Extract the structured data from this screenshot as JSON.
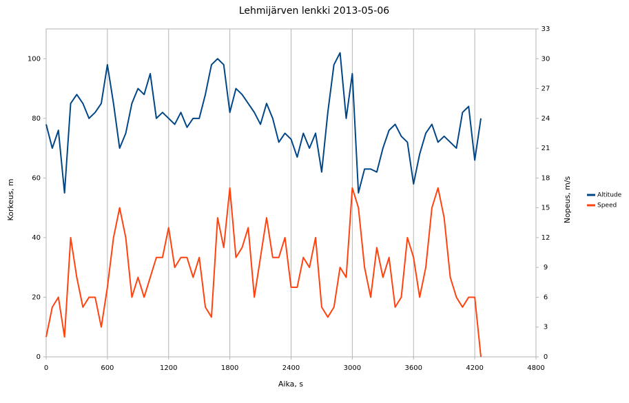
{
  "chart_data": {
    "type": "line",
    "title": "Lehmijärven lenkki 2013-05-06",
    "xlabel": "Aika, s",
    "ylabel": "Korkeus, m",
    "y2label": "Nopeus, m/s",
    "x": [
      0,
      60,
      120,
      180,
      240,
      300,
      360,
      420,
      480,
      540,
      600,
      660,
      720,
      780,
      840,
      900,
      960,
      1020,
      1080,
      1140,
      1200,
      1260,
      1320,
      1380,
      1440,
      1500,
      1560,
      1620,
      1680,
      1740,
      1800,
      1860,
      1920,
      1980,
      2040,
      2100,
      2160,
      2220,
      2280,
      2340,
      2400,
      2460,
      2520,
      2580,
      2640,
      2700,
      2760,
      2820,
      2880,
      2940,
      3000,
      3060,
      3120,
      3180,
      3240,
      3300,
      3360,
      3420,
      3480,
      3540,
      3600,
      3660,
      3720,
      3780,
      3840,
      3900,
      3960,
      4020,
      4080,
      4140,
      4200,
      4260
    ],
    "series": [
      {
        "name": "Altitude",
        "color": "#004586",
        "values": [
          78,
          70,
          76,
          55,
          85,
          88,
          85,
          80,
          82,
          85,
          98,
          85,
          70,
          75,
          85,
          90,
          88,
          95,
          80,
          82,
          80,
          78,
          82,
          77,
          80,
          80,
          88,
          98,
          100,
          98,
          82,
          90,
          88,
          85,
          82,
          78,
          85,
          80,
          72,
          75,
          73,
          67,
          75,
          70,
          75,
          62,
          82,
          98,
          102,
          80,
          95,
          55,
          63,
          63,
          62,
          70,
          76,
          78,
          74,
          72,
          58,
          68,
          75,
          78,
          72,
          74,
          72,
          70,
          82,
          84,
          66,
          80
        ]
      },
      {
        "name": "Speed",
        "color": "#ff420e",
        "axis": "y2",
        "values": [
          2,
          5,
          6,
          2,
          12,
          8,
          5,
          6,
          6,
          3,
          7,
          12,
          15,
          12,
          6,
          8,
          6,
          8,
          10,
          10,
          13,
          9,
          10,
          10,
          8,
          10,
          5,
          4,
          14,
          11,
          17,
          10,
          11,
          13,
          6,
          10,
          14,
          10,
          10,
          12,
          7,
          7,
          10,
          9,
          12,
          5,
          4,
          5,
          9,
          8,
          17,
          15,
          9,
          6,
          11,
          8,
          10,
          5,
          6,
          12,
          10,
          6,
          9,
          15,
          17,
          14,
          8,
          6,
          5,
          6,
          6,
          0
        ]
      }
    ],
    "xlim": [
      0,
      4800
    ],
    "xticks": [
      0,
      600,
      1200,
      1800,
      2400,
      3000,
      3600,
      4200,
      4800
    ],
    "ylim": [
      0,
      110
    ],
    "yticks": [
      0,
      20,
      40,
      60,
      80,
      100
    ],
    "y2lim": [
      0,
      33
    ],
    "y2ticks": [
      0,
      3,
      6,
      9,
      12,
      15,
      18,
      21,
      24,
      27,
      30,
      33
    ],
    "xgrid": true,
    "legend": "right"
  }
}
